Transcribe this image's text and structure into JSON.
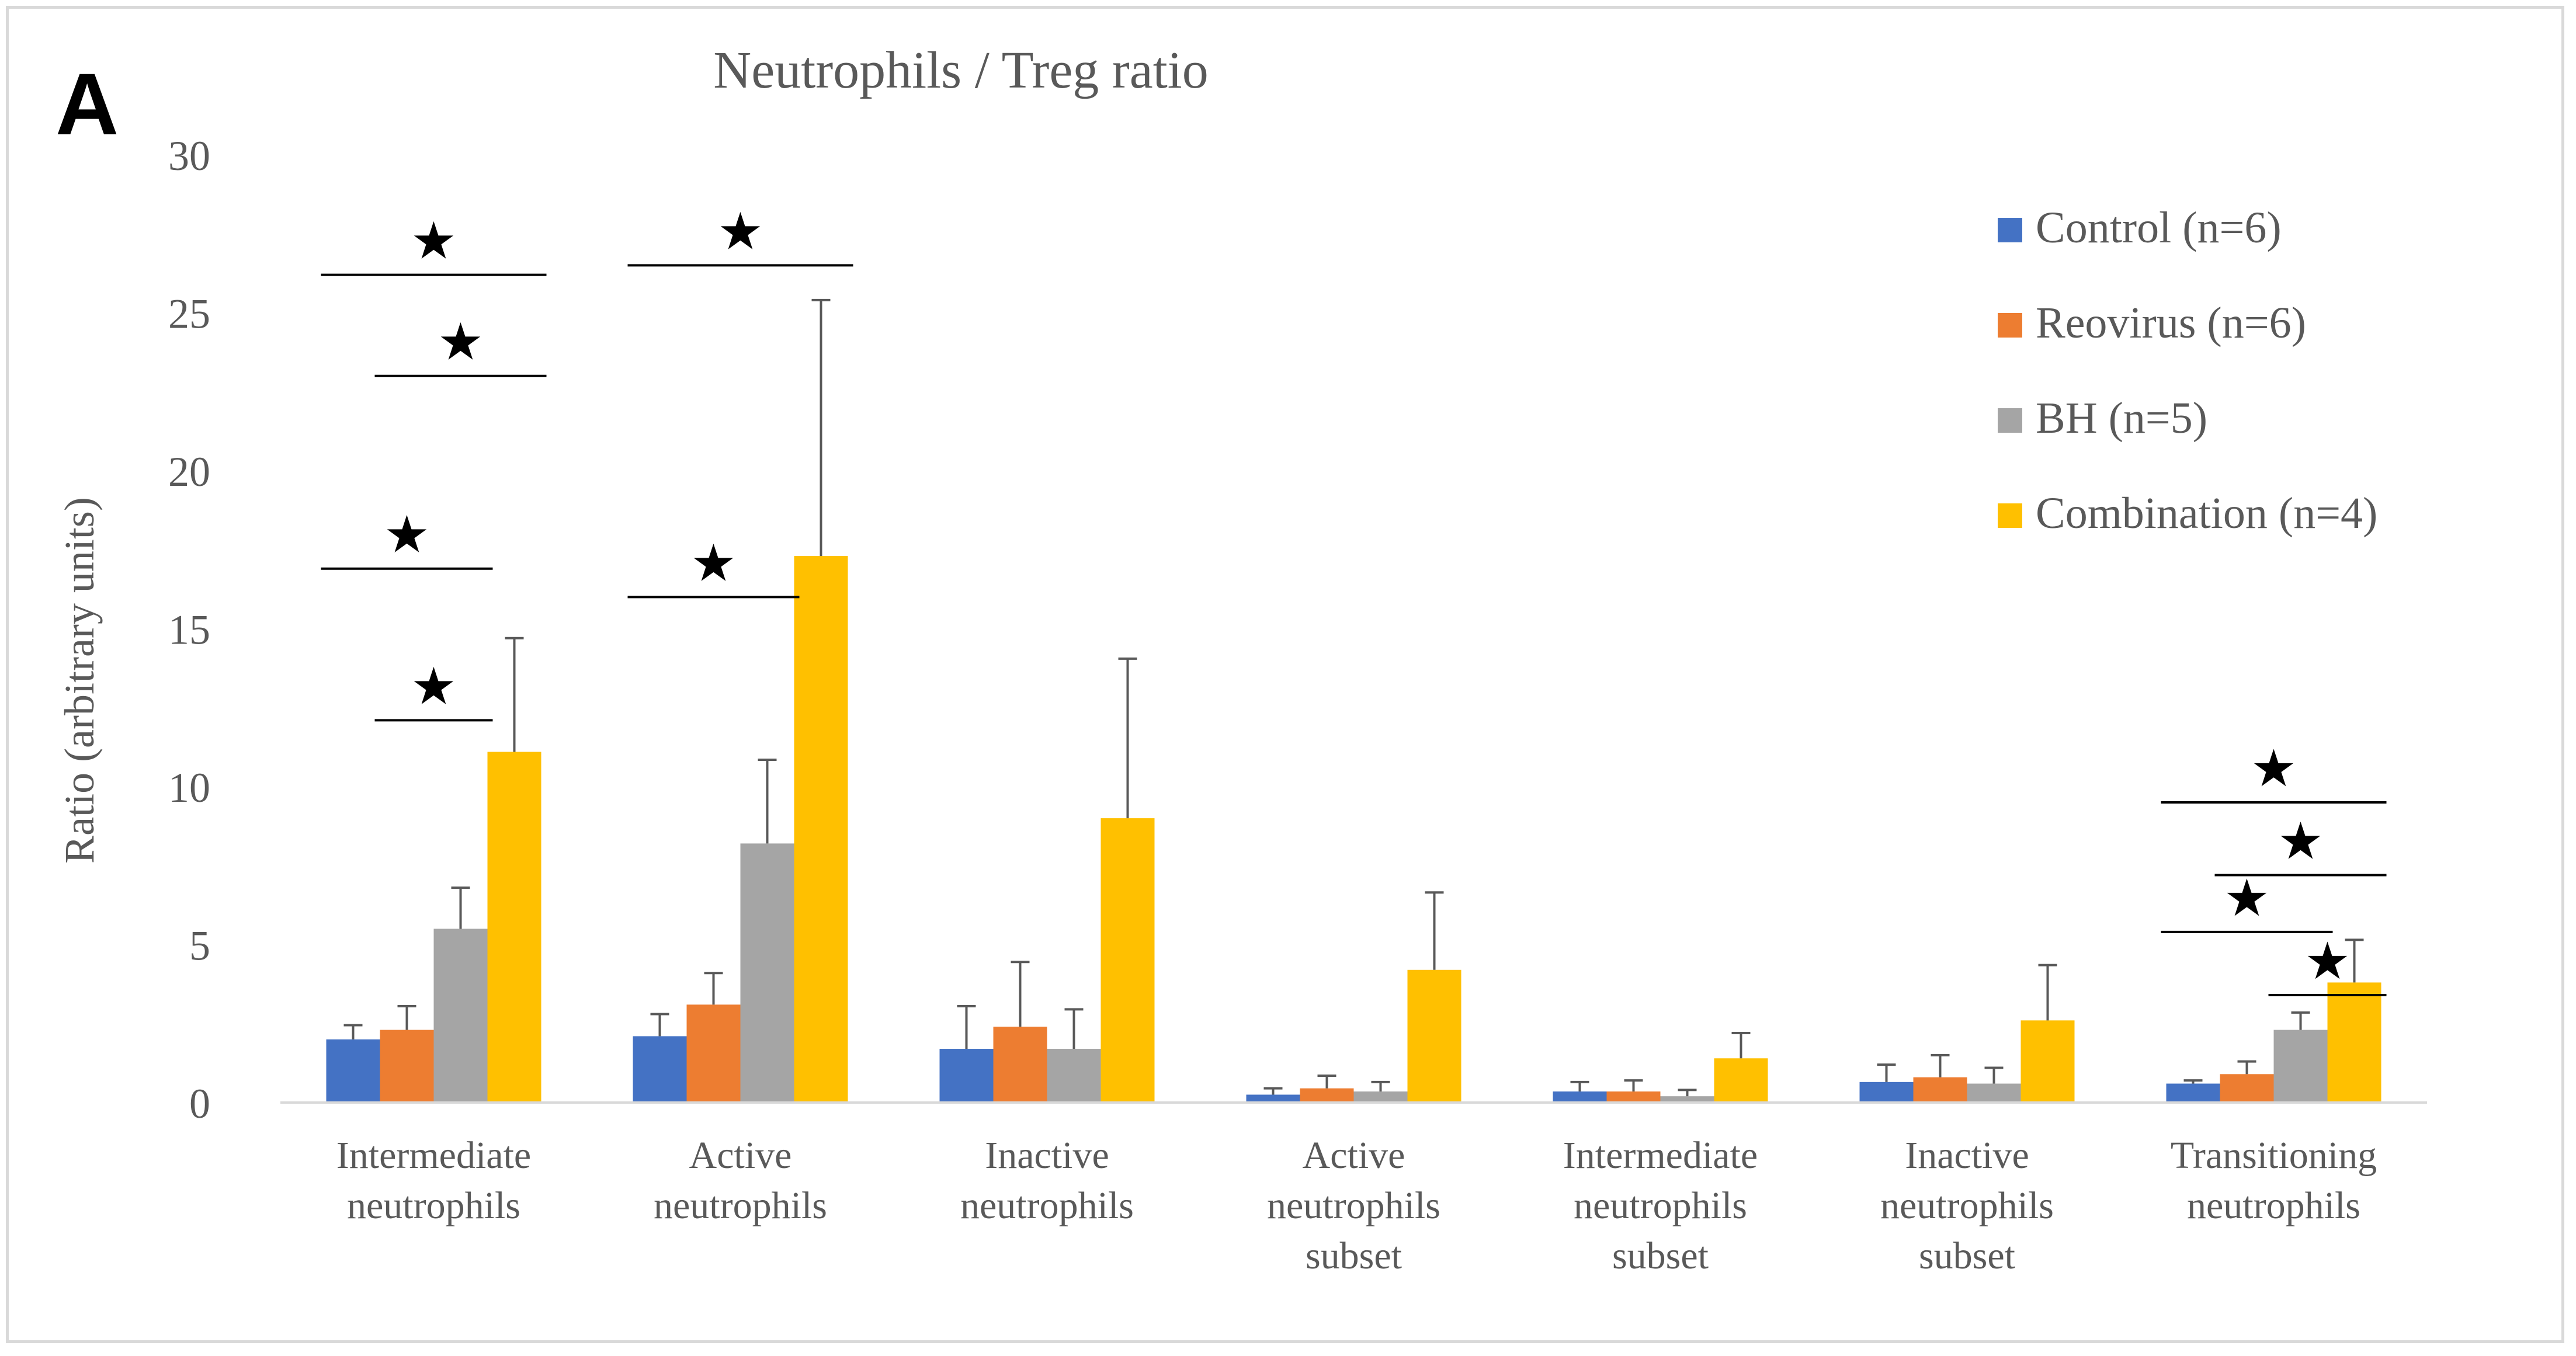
{
  "panel_label": "A",
  "chart_data": {
    "type": "bar",
    "title": "Neutrophils / Treg ratio",
    "xlabel": "",
    "ylabel": "Ratio (arbitrary units)",
    "ylim": [
      0,
      30
    ],
    "yticks": [
      0,
      5,
      10,
      15,
      20,
      25,
      30
    ],
    "grid": false,
    "legend_position": "top-right",
    "categories": [
      [
        "Intermediate",
        "neutrophils"
      ],
      [
        "Active",
        "neutrophils"
      ],
      [
        "Inactive",
        "neutrophils"
      ],
      [
        "Active",
        "neutrophils",
        "subset"
      ],
      [
        "Intermediate",
        "neutrophils",
        "subset"
      ],
      [
        "Inactive",
        "neutrophils",
        "subset"
      ],
      [
        "Transitioning",
        "neutrophils"
      ]
    ],
    "series": [
      {
        "name": "Control (n=6)",
        "color": "#4472c4",
        "values": [
          2.0,
          2.1,
          1.7,
          0.25,
          0.35,
          0.65,
          0.6
        ],
        "errors": [
          0.45,
          0.7,
          1.35,
          0.2,
          0.3,
          0.55,
          0.1
        ]
      },
      {
        "name": "Reovirus (n=6)",
        "color": "#ed7d31",
        "values": [
          2.3,
          3.1,
          2.4,
          0.45,
          0.35,
          0.8,
          0.9
        ],
        "errors": [
          0.75,
          1.0,
          2.05,
          0.4,
          0.35,
          0.7,
          0.4
        ]
      },
      {
        "name": "BH (n=5)",
        "color": "#a5a5a5",
        "values": [
          5.5,
          8.2,
          1.7,
          0.35,
          0.2,
          0.6,
          2.3
        ],
        "errors": [
          1.3,
          2.65,
          1.25,
          0.3,
          0.2,
          0.5,
          0.55
        ]
      },
      {
        "name": "Combination (n=4)",
        "color": "#ffc000",
        "values": [
          11.1,
          17.3,
          9.0,
          4.2,
          1.4,
          2.6,
          3.8
        ],
        "errors": [
          3.6,
          8.1,
          5.05,
          2.45,
          0.8,
          1.75,
          1.35
        ]
      }
    ],
    "significance": [
      {
        "category": 0,
        "from": 1,
        "to": 2,
        "symbol": "★",
        "y": 12.1
      },
      {
        "category": 0,
        "from": 0,
        "to": 2,
        "symbol": "★",
        "y": 16.9
      },
      {
        "category": 0,
        "from": 1,
        "to": 3,
        "symbol": "★",
        "y": 23.0
      },
      {
        "category": 0,
        "from": 0,
        "to": 3,
        "symbol": "★",
        "y": 26.2
      },
      {
        "category": 1,
        "from": 0,
        "to": 2,
        "symbol": "★",
        "y": 16.0
      },
      {
        "category": 1,
        "from": 0,
        "to": 3,
        "symbol": "★",
        "y": 26.5
      },
      {
        "category": 6,
        "from": 2,
        "to": 3,
        "symbol": "★",
        "y": 3.4
      },
      {
        "category": 6,
        "from": 0,
        "to": 2,
        "symbol": "★",
        "y": 5.4
      },
      {
        "category": 6,
        "from": 1,
        "to": 3,
        "symbol": "★",
        "y": 7.2
      },
      {
        "category": 6,
        "from": 0,
        "to": 3,
        "symbol": "★",
        "y": 9.5
      }
    ]
  }
}
